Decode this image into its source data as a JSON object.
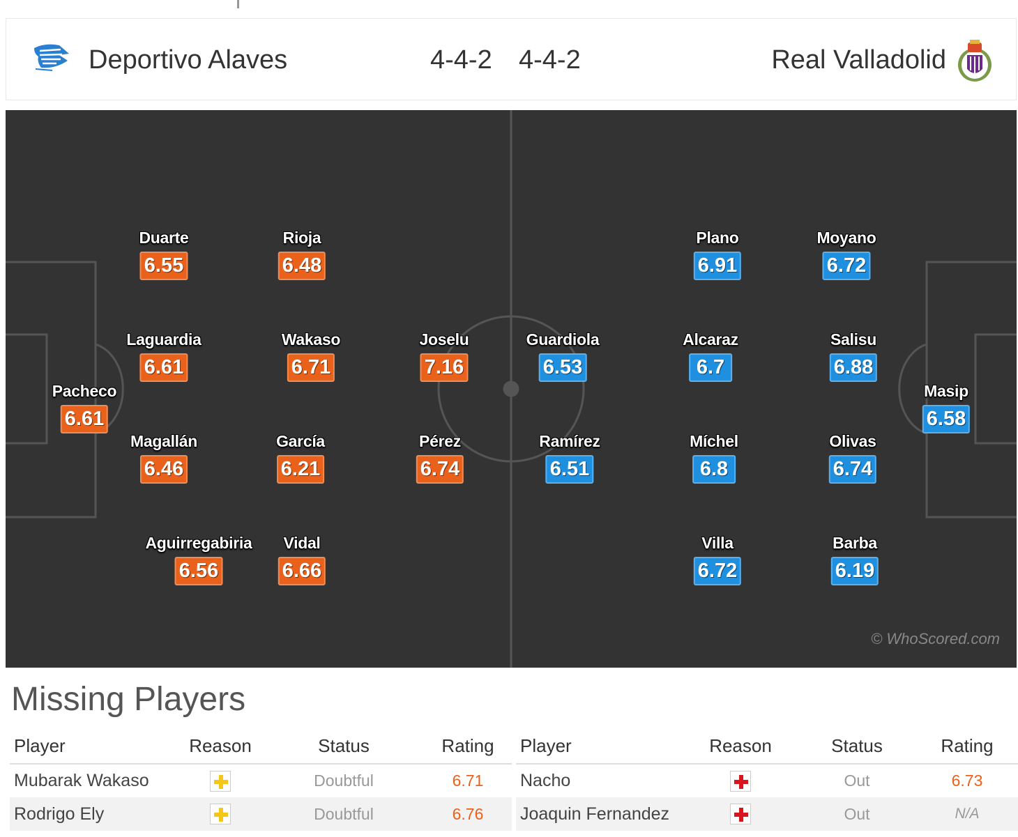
{
  "header": {
    "home_team": "Deportivo Alaves",
    "home_formation": "4-4-2",
    "away_formation": "4-4-2",
    "away_team": "Real Valladolid",
    "home_logo_icon": "alaves-crest-icon",
    "away_logo_icon": "valladolid-crest-icon"
  },
  "colors": {
    "home_rating": "#e9611b",
    "away_rating": "#1f8fe0",
    "pitch": "#333333"
  },
  "pitch": {
    "watermark": "© WhoScored.com",
    "home_players": [
      {
        "name": "Pacheco",
        "rating": "6.61"
      },
      {
        "name": "Duarte",
        "rating": "6.55"
      },
      {
        "name": "Laguardia",
        "rating": "6.61"
      },
      {
        "name": "Magallán",
        "rating": "6.46"
      },
      {
        "name": "Aguirregabiria",
        "rating": "6.56"
      },
      {
        "name": "Rioja",
        "rating": "6.48"
      },
      {
        "name": "Wakaso",
        "rating": "6.71"
      },
      {
        "name": "García",
        "rating": "6.21"
      },
      {
        "name": "Vidal",
        "rating": "6.66"
      },
      {
        "name": "Joselu",
        "rating": "7.16"
      },
      {
        "name": "Pérez",
        "rating": "6.74"
      }
    ],
    "away_players": [
      {
        "name": "Guardiola",
        "rating": "6.53"
      },
      {
        "name": "Ramírez",
        "rating": "6.51"
      },
      {
        "name": "Plano",
        "rating": "6.91"
      },
      {
        "name": "Alcaraz",
        "rating": "6.7"
      },
      {
        "name": "Míchel",
        "rating": "6.8"
      },
      {
        "name": "Villa",
        "rating": "6.72"
      },
      {
        "name": "Moyano",
        "rating": "6.72"
      },
      {
        "name": "Salisu",
        "rating": "6.88"
      },
      {
        "name": "Olivas",
        "rating": "6.74"
      },
      {
        "name": "Barba",
        "rating": "6.19"
      },
      {
        "name": "Masip",
        "rating": "6.58"
      }
    ]
  },
  "missing": {
    "title": "Missing Players",
    "columns": [
      "Player",
      "Reason",
      "Status",
      "Rating"
    ],
    "home": [
      {
        "player": "Mubarak Wakaso",
        "reason_icon": "doubtful-cross-icon",
        "status": "Doubtful",
        "rating": "6.71"
      },
      {
        "player": "Rodrigo Ely",
        "reason_icon": "doubtful-cross-icon",
        "status": "Doubtful",
        "rating": "6.76"
      }
    ],
    "away": [
      {
        "player": "Nacho",
        "reason_icon": "injury-cross-icon",
        "status": "Out",
        "rating": "6.73"
      },
      {
        "player": "Joaquin Fernandez",
        "reason_icon": "injury-cross-icon",
        "status": "Out",
        "rating": "N/A"
      }
    ]
  }
}
